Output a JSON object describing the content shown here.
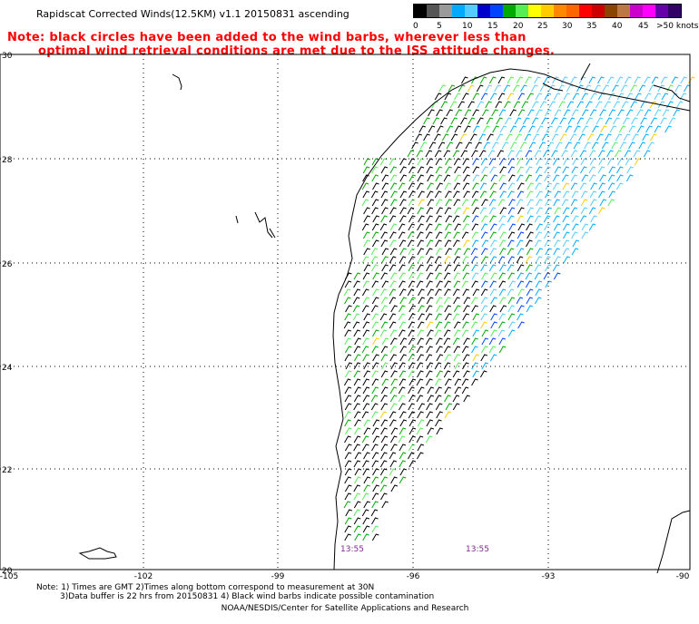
{
  "title": "Rapidscat Corrected Winds(12.5KM) v1.1 20150831 ascending",
  "note": {
    "line1": "Note: black circles have been added to the wind barbs, wherever less than",
    "line2": "optimal wind retrieval conditions are met due to the ISS attitude changes."
  },
  "legend": {
    "colors": [
      "#000000",
      "#555555",
      "#9a9a9a",
      "#00aaff",
      "#55ccff",
      "#0000cc",
      "#0044ff",
      "#00aa00",
      "#55ee55",
      "#ffff00",
      "#ffcc00",
      "#ff8800",
      "#ff6600",
      "#ff0000",
      "#cc0000",
      "#884400",
      "#bb7744",
      "#cc00cc",
      "#ff00ff",
      "#6600aa",
      "#330066"
    ],
    "labels": [
      "0",
      "5",
      "10",
      "15",
      "20",
      "25",
      "30",
      "35",
      "40",
      "45",
      ">50 knots"
    ]
  },
  "map": {
    "lat_ticks": [
      "30",
      "28",
      "26",
      "24",
      "22",
      "20"
    ],
    "lon_ticks": [
      "-105",
      "-102",
      "-99",
      "-96",
      "-93",
      "-90"
    ],
    "time_labels": [
      "13:55",
      "13:55"
    ]
  },
  "footer": {
    "note1": "Note: 1) Times are GMT 2)Times along bottom correspond to measurement at 30N",
    "note2": "3)Data buffer is 22 hrs from 20150831 4) Black wind barbs indicate possible contamination",
    "credit": "NOAA/NESDIS/Center for Satellite Applications and Research"
  }
}
